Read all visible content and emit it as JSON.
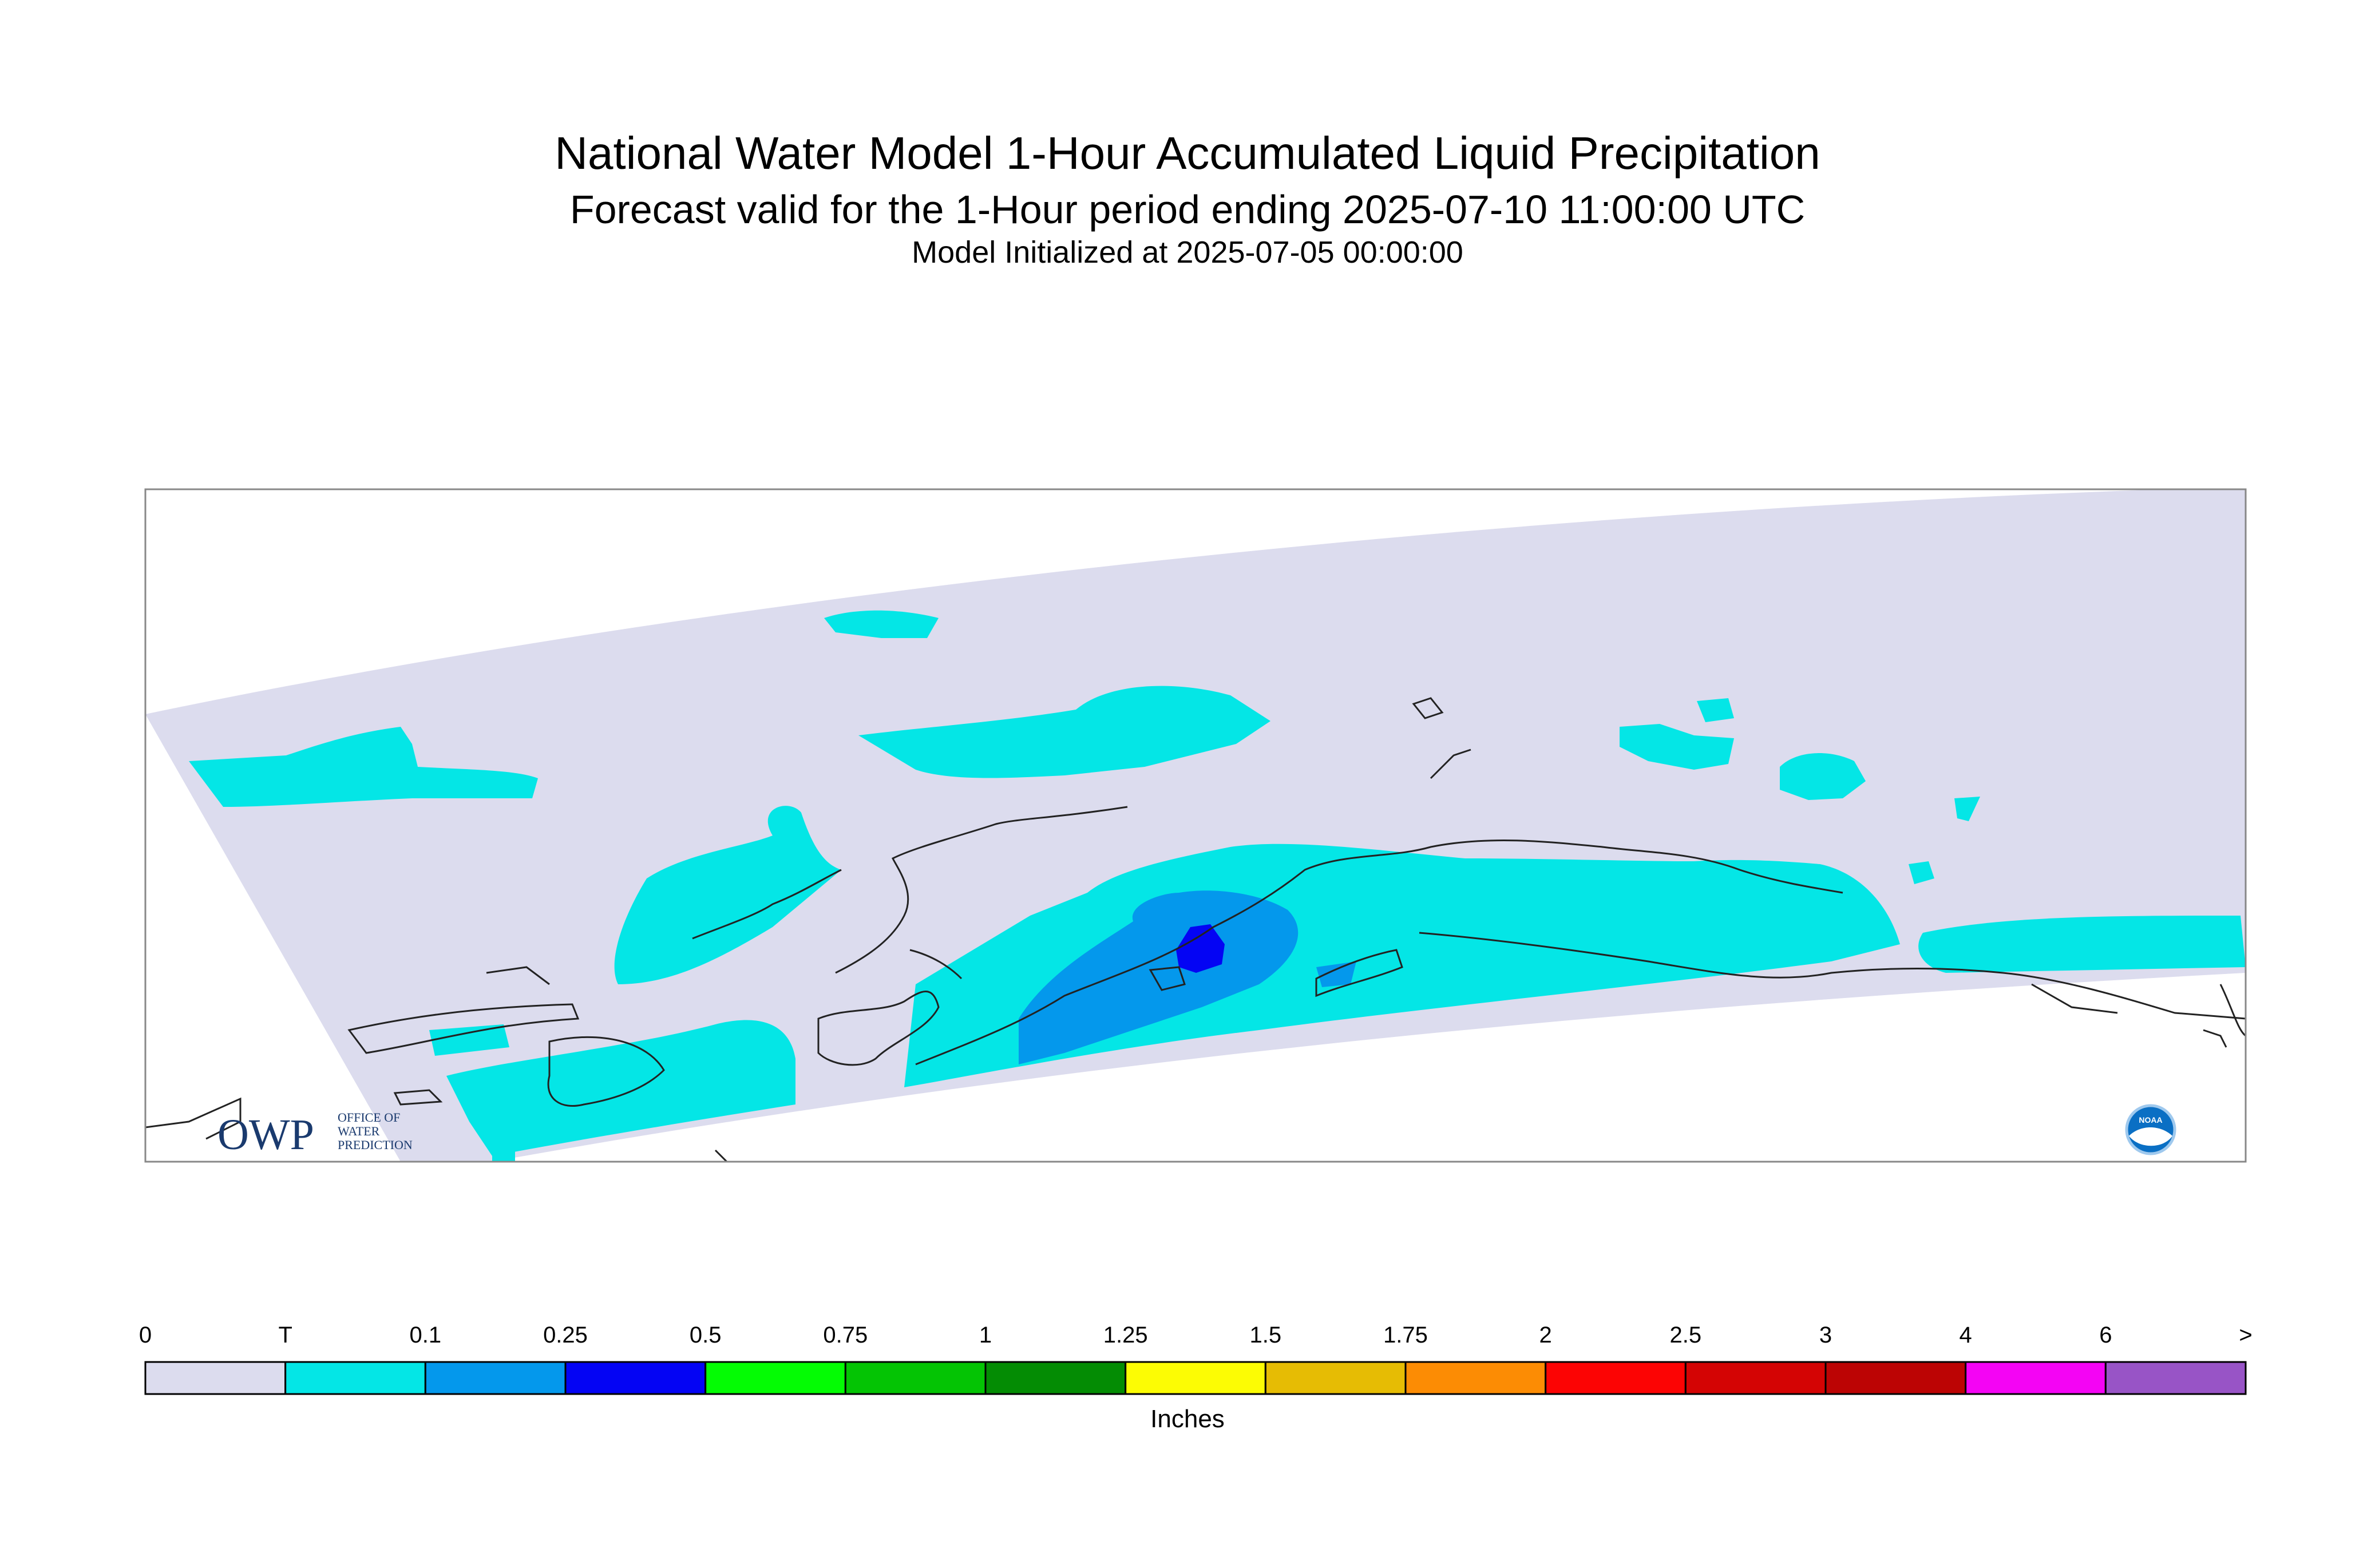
{
  "header": {
    "title": "National Water Model 1-Hour Accumulated Liquid Precipitation",
    "subtitle": "Forecast valid for the 1-Hour period ending 2025-07-10 11:00:00 UTC",
    "initialized": "Model Initialized at 2025-07-05 00:00:00"
  },
  "logos": {
    "owp_mark": "OWP",
    "owp_line1": "OFFICE OF",
    "owp_line2": "WATER",
    "owp_line3": "PREDICTION",
    "noaa_mark": "NOAA"
  },
  "colorbar": {
    "units": "Inches",
    "ticks": [
      "0",
      "T",
      "0.1",
      "0.25",
      "0.5",
      "0.75",
      "1",
      "1.25",
      "1.5",
      "1.75",
      "2",
      "2.5",
      "3",
      "4",
      "6",
      ">"
    ],
    "colors": [
      "#dcdcee",
      "#04e6e6",
      "#0498ec",
      "#0404f4",
      "#04fc04",
      "#04c404",
      "#048c04",
      "#fcfc04",
      "#e6bc04",
      "#fc8c04",
      "#fc0404",
      "#d40404",
      "#bc0404",
      "#f404f4",
      "#9854c6"
    ]
  },
  "map_colors": {
    "domain": "#dcdcee",
    "trace": "#04e6e6",
    "light": "#0498ec",
    "heavy": "#0404f4",
    "coast": "#222222",
    "frame": "#888888"
  }
}
